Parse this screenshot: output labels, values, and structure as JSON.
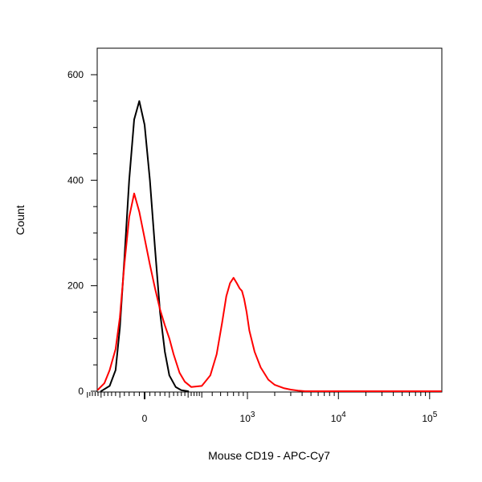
{
  "chart_data": {
    "type": "line",
    "title": "",
    "xlabel": "Mouse CD19 - APC-Cy7",
    "ylabel": "Count",
    "x_scale": "biexponential",
    "ylim": [
      0,
      650
    ],
    "y_ticks": [
      {
        "value": 0,
        "label": "0"
      },
      {
        "value": 200,
        "label": "200"
      },
      {
        "value": 400,
        "label": "400"
      },
      {
        "value": 600,
        "label": "600"
      }
    ],
    "x_ticks": [
      {
        "value": 0,
        "base": "0",
        "exp": ""
      },
      {
        "value": 1000,
        "base": "10",
        "exp": "3"
      },
      {
        "value": 10000,
        "base": "10",
        "exp": "4"
      },
      {
        "value": 100000,
        "base": "10",
        "exp": "5"
      }
    ],
    "grid": false,
    "legend": "none",
    "series": [
      {
        "color": "#000000",
        "x": [
          -200,
          -150,
          -120,
          -100,
          -80,
          -60,
          -40,
          -20,
          0,
          20,
          40,
          60,
          80,
          100,
          130,
          160,
          200
        ],
        "y": [
          0,
          10,
          40,
          120,
          250,
          400,
          515,
          550,
          505,
          400,
          270,
          150,
          75,
          30,
          8,
          2,
          0
        ]
      },
      {
        "color": "#ff0000",
        "x": [
          -220,
          -180,
          -150,
          -120,
          -100,
          -80,
          -60,
          -40,
          -20,
          0,
          20,
          40,
          60,
          80,
          100,
          120,
          150,
          180,
          220,
          300,
          380,
          450,
          520,
          580,
          640,
          700,
          760,
          820,
          870,
          920,
          980,
          1050,
          1200,
          1400,
          1700,
          2000,
          2500,
          3000,
          3600,
          4300,
          5000,
          6000,
          7000
        ],
        "y": [
          3,
          15,
          40,
          80,
          140,
          240,
          330,
          375,
          340,
          290,
          240,
          195,
          155,
          125,
          100,
          70,
          35,
          18,
          8,
          10,
          30,
          70,
          130,
          180,
          205,
          215,
          205,
          195,
          190,
          175,
          150,
          115,
          75,
          45,
          22,
          12,
          6,
          3,
          1,
          0,
          0,
          0,
          0
        ]
      }
    ]
  }
}
